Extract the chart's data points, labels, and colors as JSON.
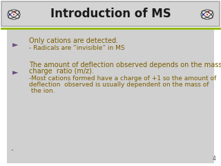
{
  "title": "Introduction of MS",
  "title_color": "#1a1a1a",
  "header_bg": "#d4d4d4",
  "header_border": "#aaaaaa",
  "content_bg": "#d0d0d0",
  "outer_bg": "#ffffff",
  "green_line_color": "#8db600",
  "bullet_color": "#7a5c00",
  "bullet_arrow_color": "#6a5080",
  "bullet1_main": "Only cations are detected.",
  "bullet1_sub": "- Radicals are “invisible” in MS",
  "bullet2_line1": "The amount of deflection observed depends on the mass to",
  "bullet2_line2": "charge  ratio (m/z).",
  "bullet2_line3": "-Most cations formed have a charge of +1 so the amount of",
  "bullet2_line4": "deflection  observed is usually dependent on the mass of",
  "bullet2_line5": " the ion.",
  "page_number": "4",
  "dot_color": "#888888",
  "font_size_main": 7.0,
  "font_size_sub": 6.5,
  "font_size_title": 12
}
